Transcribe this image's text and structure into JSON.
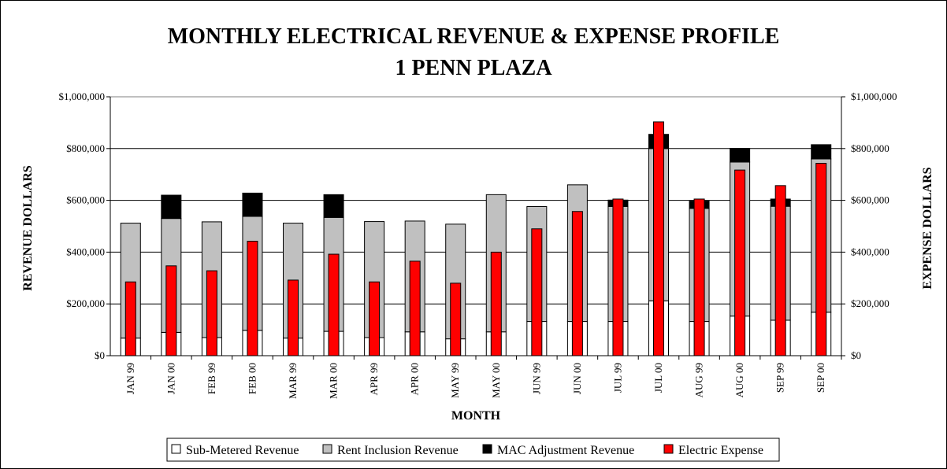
{
  "chart_data": {
    "type": "bar",
    "title": "MONTHLY ELECTRICAL REVENUE & EXPENSE PROFILE",
    "subtitle": "1 PENN PLAZA",
    "xlabel": "MONTH",
    "ylabel": "REVENUE DOLLARS",
    "y2label": "EXPENSE DOLLARS",
    "ylim": [
      0,
      1000000
    ],
    "yticks": [
      "$0",
      "$200,000",
      "$400,000",
      "$600,000",
      "$800,000",
      "$1,000,000"
    ],
    "grid": true,
    "legend_position": "bottom",
    "categories": [
      "JAN 99",
      "JAN 00",
      "FEB 99",
      "FEB 00",
      "MAR 99",
      "MAR 00",
      "APR 99",
      "APR 00",
      "MAY 99",
      "MAY 00",
      "JUN 99",
      "JUN 00",
      "JUL 99",
      "JUL 00",
      "AUG 99",
      "AUG 00",
      "SEP 99",
      "SEP 00"
    ],
    "series": [
      {
        "name": "Sub-Metered Revenue",
        "color": "#ffffff",
        "values": [
          68000,
          90000,
          70000,
          98000,
          68000,
          94000,
          70000,
          92000,
          65000,
          92000,
          132000,
          132000,
          132000,
          212000,
          132000,
          153000,
          137000,
          168000
        ]
      },
      {
        "name": "Rent Inclusion Revenue",
        "color": "#c0c0c0",
        "values": [
          444000,
          440000,
          447000,
          440000,
          444000,
          440000,
          448000,
          428000,
          443000,
          530000,
          444000,
          528000,
          444000,
          588000,
          437000,
          595000,
          440000,
          592000
        ]
      },
      {
        "name": "MAC Adjustment Revenue",
        "color": "#000000",
        "values": [
          0,
          90000,
          0,
          90000,
          0,
          88000,
          0,
          0,
          0,
          0,
          0,
          0,
          25000,
          55000,
          28000,
          53000,
          28000,
          55000
        ]
      },
      {
        "name": "Electric Expense",
        "color": "#ff0000",
        "values": [
          285000,
          347000,
          328000,
          442000,
          292000,
          392000,
          285000,
          365000,
          280000,
          400000,
          490000,
          557000,
          605000,
          903000,
          605000,
          717000,
          657000,
          743000
        ]
      }
    ]
  }
}
